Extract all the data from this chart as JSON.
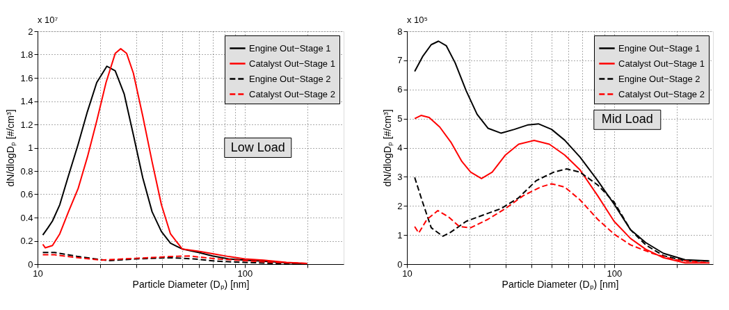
{
  "chart_data": [
    {
      "type": "line",
      "xlabel": "Particle Diameter (Dₚ) [nm]",
      "ylabel": "dN/dlogDₚ [#/cm³]",
      "annotations": [
        "x 10⁷",
        "Low Load"
      ],
      "log": "x",
      "grid": true,
      "legend": "top right",
      "xlim": [
        10,
        300
      ],
      "ylim": [
        0,
        2
      ],
      "xticks": [
        10,
        {
          "value": 20,
          "label": null
        },
        {
          "value": 30,
          "label": null
        },
        {
          "value": 40,
          "label": null
        },
        {
          "value": 50,
          "label": null
        },
        {
          "value": 60,
          "label": null
        },
        {
          "value": 70,
          "label": null
        },
        {
          "value": 80,
          "label": null
        },
        {
          "value": 90,
          "label": null
        },
        100,
        {
          "value": 200,
          "label": null
        }
      ],
      "yticks": [
        0,
        0.2,
        0.4,
        0.6,
        0.8,
        1,
        1.2,
        1.4,
        1.6,
        1.8,
        2
      ],
      "series": [
        {
          "name": "Engine Out−Stage 1",
          "color": "#000000",
          "line_style": "solid",
          "x": [
            10.6,
            11.2,
            11.8,
            12.8,
            14.1,
            15.7,
            17.4,
            19.3,
            21.6,
            23.7,
            26.2,
            29.0,
            32.2,
            35.7,
            39.6,
            43.8,
            49.9,
            59.9,
            69.9,
            83.6,
            100,
            123,
            159,
            181,
            200
          ],
          "values": [
            0.25,
            0.31,
            0.37,
            0.51,
            0.76,
            1.03,
            1.31,
            1.56,
            1.7,
            1.66,
            1.46,
            1.11,
            0.74,
            0.45,
            0.28,
            0.18,
            0.13,
            0.1,
            0.07,
            0.045,
            0.035,
            0.025,
            0.012,
            0.006,
            0
          ]
        },
        {
          "name": "Catalyst Out−Stage 1",
          "color": "#ff0000",
          "line_style": "solid",
          "x": [
            10.6,
            10.9,
            11.8,
            12.8,
            14.1,
            15.7,
            17.4,
            19.3,
            21.4,
            23.7,
            25.2,
            26.9,
            29.0,
            32.2,
            35.7,
            39.6,
            43.8,
            49.9,
            59.9,
            69.9,
            83.6,
            100,
            123,
            159,
            200
          ],
          "values": [
            0.17,
            0.14,
            0.16,
            0.26,
            0.45,
            0.65,
            0.92,
            1.23,
            1.56,
            1.81,
            1.85,
            1.81,
            1.64,
            1.27,
            0.88,
            0.51,
            0.26,
            0.13,
            0.11,
            0.09,
            0.065,
            0.045,
            0.035,
            0.015,
            0.006
          ]
        },
        {
          "name": "Engine Out−Stage 2",
          "color": "#000000",
          "line_style": "dashed",
          "x": [
            10.6,
            12.1,
            15.7,
            21.9,
            29.8,
            43.8,
            56.6,
            73.3,
            100,
            139,
            200
          ],
          "values": [
            0.1,
            0.1,
            0.065,
            0.03,
            0.045,
            0.055,
            0.045,
            0.025,
            0.015,
            0.006,
            0
          ]
        },
        {
          "name": "Catalyst Out−Stage 2",
          "color": "#ff0000",
          "line_style": "dashed",
          "x": [
            10.6,
            12.1,
            15.7,
            20.3,
            29.8,
            43.8,
            53.9,
            73.3,
            100,
            139,
            200
          ],
          "values": [
            0.08,
            0.08,
            0.055,
            0.035,
            0.05,
            0.065,
            0.07,
            0.045,
            0.03,
            0.015,
            0.006
          ]
        }
      ]
    },
    {
      "type": "line",
      "xlabel": "Particle Diameter (Dₚ) [nm]",
      "ylabel": "dN/dlogDₚ [#/cm³]",
      "annotations": [
        "x 10⁵",
        "Mid Load"
      ],
      "log": "x",
      "grid": true,
      "legend": "top right",
      "xlim": [
        10,
        300
      ],
      "ylim": [
        0,
        8
      ],
      "xticks": [
        10,
        {
          "value": 20,
          "label": null
        },
        {
          "value": 30,
          "label": null
        },
        {
          "value": 40,
          "label": null
        },
        {
          "value": 50,
          "label": null
        },
        {
          "value": 60,
          "label": null
        },
        {
          "value": 70,
          "label": null
        },
        {
          "value": 80,
          "label": null
        },
        {
          "value": 90,
          "label": null
        },
        100,
        {
          "value": 200,
          "label": null
        }
      ],
      "yticks": [
        0,
        1,
        2,
        3,
        4,
        5,
        6,
        7,
        8
      ],
      "series": [
        {
          "name": "Engine Out−Stage 1",
          "color": "#000000",
          "line_style": "solid",
          "x": [
            10.9,
            11.9,
            13.1,
            14.2,
            15.5,
            17.1,
            19.3,
            21.8,
            24.6,
            28.5,
            33.0,
            38.2,
            43.1,
            49.9,
            57.7,
            68.4,
            83.3,
            100,
            120,
            142,
            173,
            220,
            288
          ],
          "values": [
            6.62,
            7.13,
            7.54,
            7.66,
            7.5,
            6.91,
            5.96,
            5.15,
            4.67,
            4.5,
            4.63,
            4.78,
            4.82,
            4.63,
            4.26,
            3.68,
            2.87,
            2.06,
            1.18,
            0.74,
            0.37,
            0.15,
            0.11
          ]
        },
        {
          "name": "Catalyst Out−Stage 1",
          "color": "#ff0000",
          "line_style": "solid",
          "x": [
            10.9,
            11.7,
            12.8,
            14.4,
            16.3,
            18.4,
            20.3,
            22.9,
            25.8,
            29.9,
            34.6,
            41.1,
            48.7,
            57.7,
            68.4,
            83.3,
            100,
            120,
            142,
            173,
            220,
            288
          ],
          "values": [
            5.0,
            5.11,
            5.04,
            4.71,
            4.19,
            3.53,
            3.16,
            2.94,
            3.16,
            3.75,
            4.12,
            4.25,
            4.12,
            3.75,
            3.24,
            2.35,
            1.47,
            0.88,
            0.51,
            0.22,
            0.04,
            0.04
          ]
        },
        {
          "name": "Engine Out−Stage 2",
          "color": "#000000",
          "line_style": "dashed",
          "x": [
            10.9,
            11.9,
            13.1,
            14.9,
            16.3,
            19.3,
            23.4,
            28.5,
            34.6,
            42.1,
            51.1,
            59.0,
            68.4,
            83.3,
            100,
            120,
            142,
            173,
            220,
            288
          ],
          "values": [
            2.98,
            2.13,
            1.25,
            0.96,
            1.1,
            1.47,
            1.69,
            1.91,
            2.28,
            2.87,
            3.16,
            3.27,
            3.16,
            2.72,
            2.13,
            1.18,
            0.66,
            0.29,
            0.11,
            0.11
          ]
        },
        {
          "name": "Catalyst Out−Stage 2",
          "color": "#ff0000",
          "line_style": "dashed",
          "x": [
            10.9,
            11.4,
            12.5,
            14.1,
            15.9,
            17.9,
            20.3,
            24.6,
            29.9,
            36.4,
            44.2,
            49.9,
            57.7,
            68.4,
            83.3,
            100,
            120,
            153,
            196,
            288
          ],
          "values": [
            1.29,
            1.07,
            1.54,
            1.84,
            1.62,
            1.29,
            1.25,
            1.54,
            1.91,
            2.35,
            2.65,
            2.76,
            2.65,
            2.21,
            1.54,
            1.03,
            0.66,
            0.37,
            0.15,
            0.04
          ]
        }
      ]
    }
  ]
}
